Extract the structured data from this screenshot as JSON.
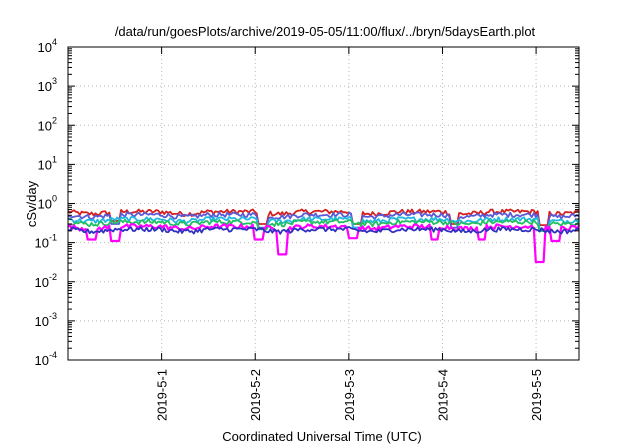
{
  "chart_data": {
    "type": "line",
    "title": "/data/run/goesPlots/archive/2019-05-05/11:00/flux/../bryn/5daysEarth.plot",
    "xlabel": "Coordinated Universal Time (UTC)",
    "ylabel": "cSv/day",
    "yscale": "log",
    "ylim": [
      0.0001,
      10000
    ],
    "yticks": [
      {
        "mant": "10",
        "exp": "-4"
      },
      {
        "mant": "10",
        "exp": "-3"
      },
      {
        "mant": "10",
        "exp": "-2"
      },
      {
        "mant": "10",
        "exp": "-1"
      },
      {
        "mant": "10",
        "exp": "0"
      },
      {
        "mant": "10",
        "exp": "1"
      },
      {
        "mant": "10",
        "exp": "2"
      },
      {
        "mant": "10",
        "exp": "3"
      },
      {
        "mant": "10",
        "exp": "4"
      }
    ],
    "xlim": [
      "2019-04-30 00:00",
      "2019-05-05 11:00"
    ],
    "xticks": [
      "2019-5-1",
      "2019-5-2",
      "2019-5-3",
      "2019-5-4",
      "2019-5-5"
    ],
    "grid": true,
    "series": [
      {
        "color": "#d62020",
        "level": 0.62,
        "dips": [
          [
            "2019-04-30 12:00",
            0.36
          ],
          [
            "2019-05-02 02:00",
            0.3
          ],
          [
            "2019-05-03 02:00",
            0.3
          ],
          [
            "2019-05-04 03:00",
            0.3
          ],
          [
            "2019-05-05 02:00",
            0.28
          ]
        ]
      },
      {
        "color": "#5a5ad8",
        "level": 0.52,
        "dips": [
          [
            "2019-04-30 12:00",
            0.3
          ],
          [
            "2019-05-02 02:00",
            0.24
          ],
          [
            "2019-05-03 02:00",
            0.24
          ],
          [
            "2019-05-04 03:00",
            0.24
          ],
          [
            "2019-05-05 02:00",
            0.22
          ]
        ]
      },
      {
        "color": "#20b8e0",
        "level": 0.4,
        "dips": [
          [
            "2019-05-02 02:00",
            0.22
          ],
          [
            "2019-05-03 02:00",
            0.24
          ],
          [
            "2019-05-05 02:00",
            0.2
          ]
        ]
      },
      {
        "color": "#20c060",
        "level": 0.34,
        "dips": [
          [
            "2019-05-02 02:00",
            0.22
          ],
          [
            "2019-05-05 02:00",
            0.2
          ]
        ]
      },
      {
        "color": "#ff00ff",
        "level": 0.26,
        "dips": [
          [
            "2019-04-30 06:00",
            0.12
          ],
          [
            "2019-04-30 12:00",
            0.11
          ],
          [
            "2019-05-02 01:00",
            0.12
          ],
          [
            "2019-05-02 07:00",
            0.05
          ],
          [
            "2019-05-03 01:00",
            0.13
          ],
          [
            "2019-05-03 22:00",
            0.12
          ],
          [
            "2019-05-04 10:00",
            0.12
          ],
          [
            "2019-05-05 01:00",
            0.032
          ],
          [
            "2019-05-05 05:00",
            0.11
          ]
        ]
      },
      {
        "color": "#3030c0",
        "level": 0.22,
        "dips": []
      }
    ]
  }
}
